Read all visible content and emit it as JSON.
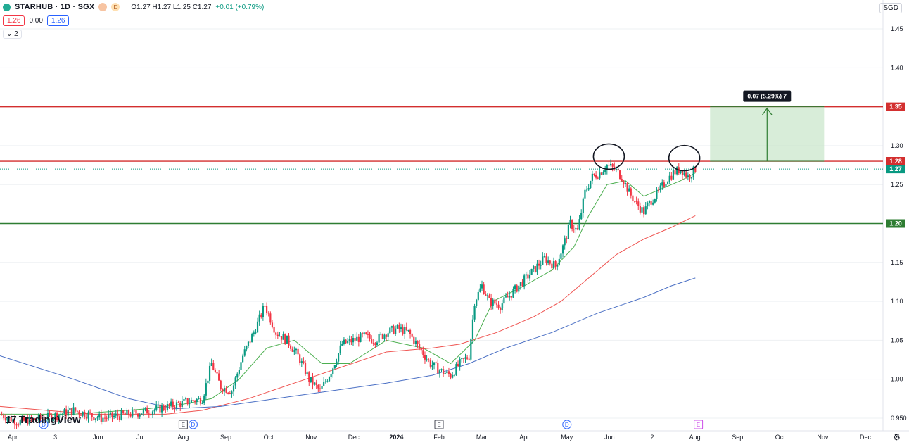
{
  "header": {
    "title": "STARHUB · 1D · SGX",
    "flag_glyph": "D",
    "ohlc": "O1.27 H1.27 L1.25 C1.27",
    "change": "+0.01 (+0.79%)",
    "bid": "1.26",
    "spread": "0.00",
    "ask": "1.26",
    "indicators_toggle": "2",
    "currency": "SGD"
  },
  "brand": {
    "name": "TradingView",
    "mark": "17"
  },
  "colors": {
    "up": "#089981",
    "down": "#f23645",
    "ma_short": "#4caf50",
    "ma_mid": "#ef5350",
    "ma_long": "#4a6fc4",
    "resistance": "#d32f2f",
    "support": "#2e7d32",
    "target_zone": "#c8e6c9"
  },
  "chart_data": {
    "type": "candlestick",
    "interval": "1D",
    "ylim": [
      0.94,
      1.46
    ],
    "y_ticks": [
      "1.45",
      "1.40",
      "1.35",
      "1.30",
      "1.25",
      "1.20",
      "1.15",
      "1.10",
      "1.05",
      "1.00",
      "0.950"
    ],
    "x_ticks": [
      "Apr",
      "3",
      "Jun",
      "Jul",
      "Aug",
      "Sep",
      "Oct",
      "Nov",
      "Dec",
      "2024",
      "Feb",
      "Mar",
      "Apr",
      "May",
      "Jun",
      "2",
      "Aug",
      "Sep",
      "Oct",
      "Nov",
      "Dec"
    ],
    "x_events": [
      {
        "at": "Apr",
        "glyph": "D",
        "kind": "dividend"
      },
      {
        "at": "Aug",
        "glyph": "E",
        "kind": "earnings"
      },
      {
        "at": "Aug",
        "glyph": "D",
        "kind": "dividend"
      },
      {
        "at": "Feb",
        "glyph": "E",
        "kind": "earnings"
      },
      {
        "at": "May",
        "glyph": "D",
        "kind": "dividend"
      },
      {
        "at": "Aug",
        "glyph": "E",
        "kind": "earnings-upcoming"
      }
    ],
    "price_path": [
      [
        0,
        0.955
      ],
      [
        10,
        0.945
      ],
      [
        25,
        0.95
      ],
      [
        40,
        0.96
      ],
      [
        55,
        0.95
      ],
      [
        70,
        0.955
      ],
      [
        82,
        0.96
      ],
      [
        92,
        0.965
      ],
      [
        100,
        0.97
      ],
      [
        110,
        0.975
      ],
      [
        115,
        1.02
      ],
      [
        120,
        0.99
      ],
      [
        126,
        0.985
      ],
      [
        132,
        1.03
      ],
      [
        138,
        1.06
      ],
      [
        144,
        1.095
      ],
      [
        150,
        1.06
      ],
      [
        156,
        1.05
      ],
      [
        162,
        1.03
      ],
      [
        168,
        1.0
      ],
      [
        174,
        0.985
      ],
      [
        180,
        1.01
      ],
      [
        186,
        1.045
      ],
      [
        192,
        1.05
      ],
      [
        198,
        1.055
      ],
      [
        204,
        1.05
      ],
      [
        210,
        1.06
      ],
      [
        216,
        1.065
      ],
      [
        222,
        1.06
      ],
      [
        228,
        1.04
      ],
      [
        234,
        1.02
      ],
      [
        240,
        1.01
      ],
      [
        245,
        1.005
      ],
      [
        250,
        1.02
      ],
      [
        255,
        1.03
      ],
      [
        258,
        1.1
      ],
      [
        262,
        1.12
      ],
      [
        266,
        1.1
      ],
      [
        272,
        1.095
      ],
      [
        278,
        1.11
      ],
      [
        284,
        1.125
      ],
      [
        290,
        1.14
      ],
      [
        296,
        1.155
      ],
      [
        302,
        1.145
      ],
      [
        306,
        1.17
      ],
      [
        310,
        1.2
      ],
      [
        314,
        1.19
      ],
      [
        318,
        1.24
      ],
      [
        322,
        1.26
      ],
      [
        326,
        1.265
      ],
      [
        330,
        1.275
      ],
      [
        334,
        1.27
      ],
      [
        338,
        1.26
      ],
      [
        342,
        1.24
      ],
      [
        346,
        1.225
      ],
      [
        350,
        1.215
      ],
      [
        354,
        1.23
      ],
      [
        358,
        1.24
      ],
      [
        362,
        1.255
      ],
      [
        366,
        1.265
      ],
      [
        370,
        1.27
      ],
      [
        374,
        1.26
      ],
      [
        378,
        1.27
      ]
    ],
    "moving_averages": [
      {
        "values": [
          [
            0,
            0.955
          ],
          [
            40,
            0.955
          ],
          [
            80,
            0.962
          ],
          [
            100,
            0.968
          ],
          [
            115,
            0.975
          ],
          [
            130,
            1.0
          ],
          [
            145,
            1.04
          ],
          [
            160,
            1.05
          ],
          [
            175,
            1.02
          ],
          [
            190,
            1.02
          ],
          [
            210,
            1.05
          ],
          [
            230,
            1.04
          ],
          [
            245,
            1.02
          ],
          [
            258,
            1.05
          ],
          [
            268,
            1.1
          ],
          [
            285,
            1.12
          ],
          [
            300,
            1.14
          ],
          [
            312,
            1.17
          ],
          [
            320,
            1.21
          ],
          [
            330,
            1.25
          ],
          [
            340,
            1.255
          ],
          [
            350,
            1.235
          ],
          [
            360,
            1.245
          ],
          [
            370,
            1.255
          ],
          [
            378,
            1.265
          ]
        ]
      },
      {
        "values": [
          [
            0,
            0.965
          ],
          [
            50,
            0.955
          ],
          [
            90,
            0.955
          ],
          [
            110,
            0.96
          ],
          [
            135,
            0.975
          ],
          [
            160,
            0.995
          ],
          [
            185,
            1.015
          ],
          [
            210,
            1.035
          ],
          [
            235,
            1.04
          ],
          [
            250,
            1.045
          ],
          [
            270,
            1.06
          ],
          [
            290,
            1.08
          ],
          [
            305,
            1.1
          ],
          [
            320,
            1.13
          ],
          [
            335,
            1.16
          ],
          [
            350,
            1.18
          ],
          [
            365,
            1.195
          ],
          [
            378,
            1.21
          ]
        ]
      },
      {
        "values": [
          [
            0,
            1.03
          ],
          [
            40,
            1.0
          ],
          [
            70,
            0.975
          ],
          [
            95,
            0.962
          ],
          [
            120,
            0.965
          ],
          [
            150,
            0.975
          ],
          [
            180,
            0.985
          ],
          [
            210,
            0.995
          ],
          [
            235,
            1.005
          ],
          [
            255,
            1.02
          ],
          [
            275,
            1.04
          ],
          [
            300,
            1.06
          ],
          [
            325,
            1.085
          ],
          [
            350,
            1.105
          ],
          [
            365,
            1.12
          ],
          [
            378,
            1.13
          ]
        ]
      }
    ],
    "horizontal_levels": [
      {
        "price": 1.35,
        "role": "resistance",
        "label": "1.35"
      },
      {
        "price": 1.28,
        "role": "resistance",
        "label": "1.28"
      },
      {
        "price": 1.2,
        "role": "support",
        "label": "1.20"
      }
    ],
    "last_price": {
      "price": 1.27,
      "label": "1.27"
    },
    "target_zone": {
      "from_price": 1.28,
      "to_price": 1.35,
      "x_start": 386,
      "x_end": 448,
      "label": "0.07 (5.29%) 7"
    },
    "annotations": [
      {
        "kind": "circle",
        "center_x": 331,
        "center_price": 1.286
      },
      {
        "kind": "circle",
        "center_x": 372,
        "center_price": 1.284
      }
    ],
    "x_domain": [
      0,
      480
    ]
  }
}
